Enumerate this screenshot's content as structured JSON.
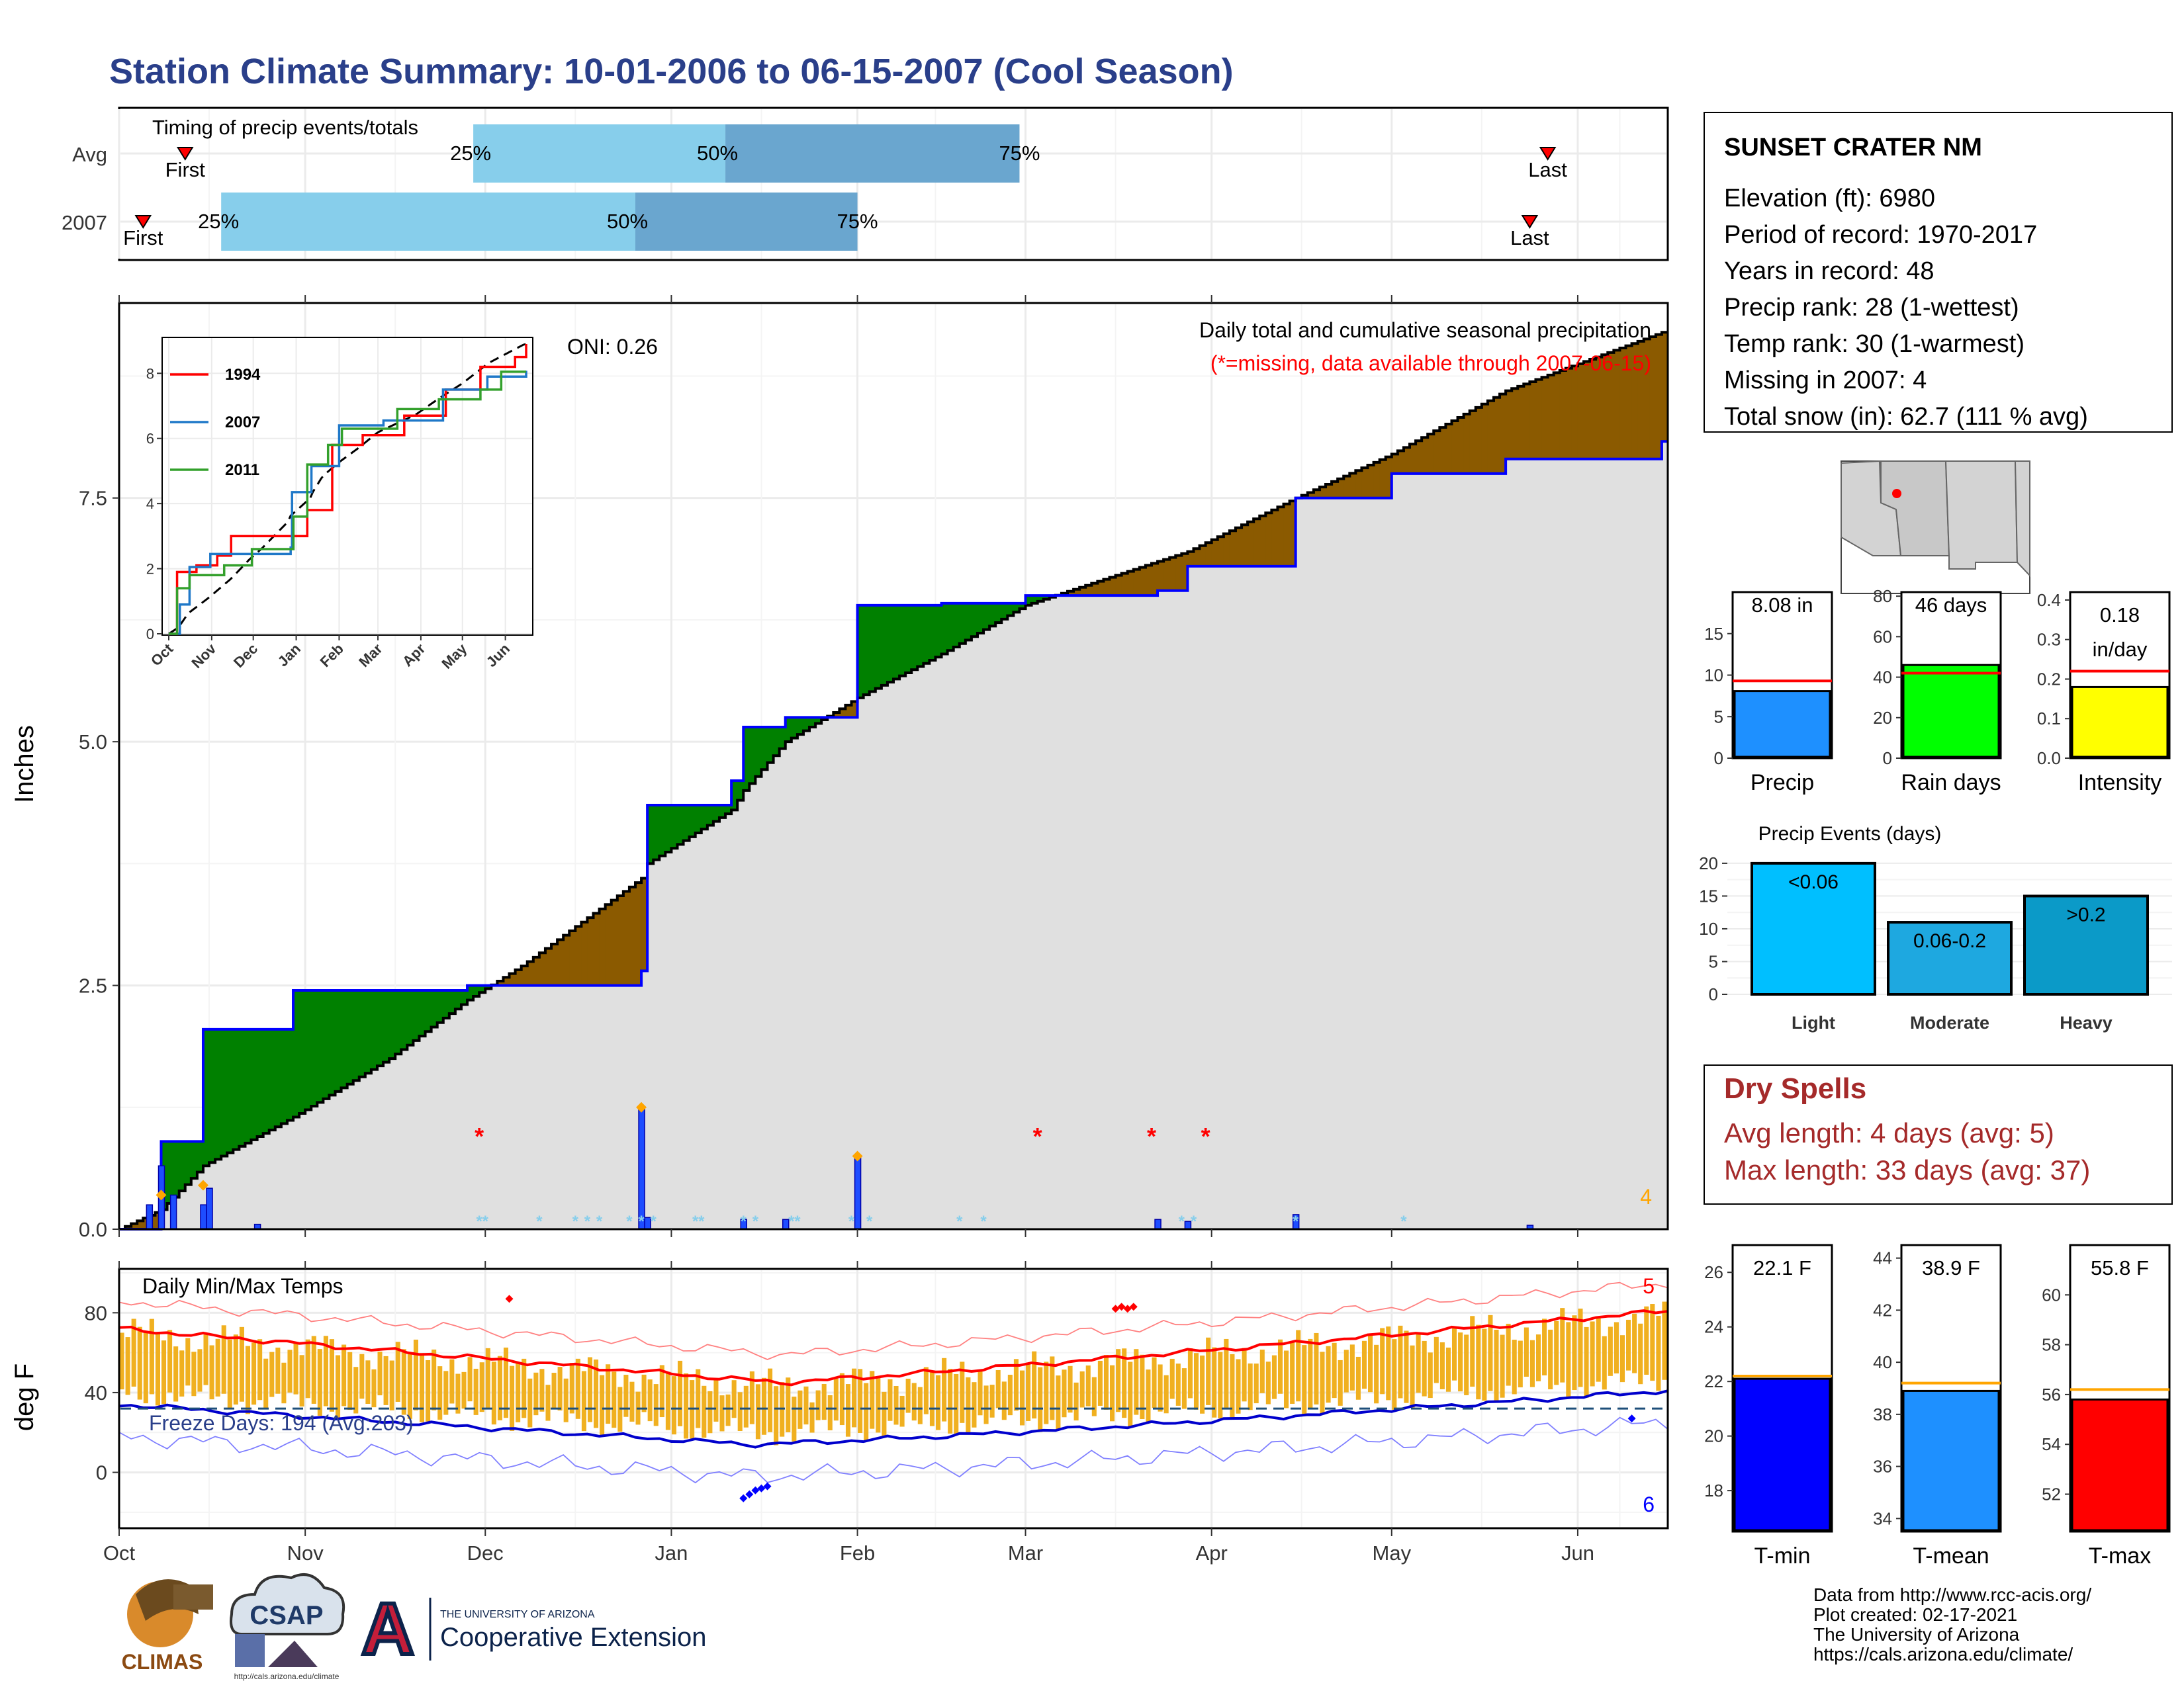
{
  "title": "Station Climate Summary: 10-01-2006 to 06-15-2007 (Cool Season)",
  "colors": {
    "title": "#2a3f8a",
    "light_blue": "#87ceeb",
    "mid_blue": "#6aa6cf",
    "green_surplus": "#008000",
    "brown_deficit": "#8b5a00",
    "gray_fill": "#e0e0e0",
    "blue_line": "#0000ff",
    "red": "#ff0000",
    "orange": "#ffa500",
    "gold_bars": "#f0b020",
    "dry_spells": "#a52a2a"
  },
  "timing": {
    "title": "Timing of precip events/totals",
    "rows": [
      {
        "label": "Avg",
        "first": "10-12",
        "p25": "11-29",
        "p50": "01-10",
        "p75": "02-28",
        "last": "05-27",
        "first_label": "First",
        "p25_label": "25%",
        "p50_label": "50%",
        "p75_label": "75%",
        "last_label": "Last"
      },
      {
        "label": "2007",
        "first": "10-05",
        "p25": "10-18",
        "p50": "12-26",
        "p75": "02-01",
        "last": "05-24",
        "first_label": "First",
        "p25_label": "25%",
        "p50_label": "50%",
        "p75_label": "75%",
        "last_label": "Last"
      }
    ]
  },
  "main_chart": {
    "ylabel": "Inches",
    "y_ticks": [
      "0.0",
      "2.5",
      "5.0",
      "7.5"
    ],
    "x_ticks": [
      "Oct",
      "Nov",
      "Dec",
      "Jan",
      "Feb",
      "Mar",
      "Apr",
      "May",
      "Jun"
    ],
    "annotation_title": "Daily total and cumulative seasonal precipitation",
    "annotation_missing": "(*=missing, data available through 2007-06-15)",
    "oni": "ONI: 0.26",
    "count_label": "4"
  },
  "inset": {
    "y_ticks": [
      "0",
      "2",
      "4",
      "6",
      "8"
    ],
    "x_ticks": [
      "Oct",
      "Nov",
      "Dec",
      "Jan",
      "Feb",
      "Mar",
      "Apr",
      "May",
      "Jun"
    ],
    "legend": [
      {
        "name": "1994",
        "color": "#ff0000"
      },
      {
        "name": "2007",
        "color": "#1f78c8"
      },
      {
        "name": "2011",
        "color": "#33a02c"
      }
    ]
  },
  "temp_chart": {
    "ylabel": "deg F",
    "title": "Daily Min/Max Temps",
    "y_ticks": [
      "0",
      "40",
      "80"
    ],
    "x_ticks": [
      "Oct",
      "Nov",
      "Dec",
      "Jan",
      "Feb",
      "Mar",
      "Apr",
      "May",
      "Jun"
    ],
    "freeze": "Freeze Days: 194 (Avg:203)",
    "high_count": "5",
    "low_count": "6"
  },
  "info": {
    "station": "SUNSET CRATER NM",
    "lines": [
      "Elevation (ft): 6980",
      "Period of record: 1970-2017",
      "Years in record: 48",
      "Precip rank: 28 (1-wettest)",
      "Temp rank: 30 (1-warmest)",
      "Missing in 2007: 4",
      "Total snow (in): 62.7 (111 % avg)"
    ]
  },
  "precip_boxes": [
    {
      "label": "Precip",
      "value_text": "8.08 in",
      "value": 8.08,
      "avg": 9.3,
      "ymax": 20,
      "ticks": [
        "0",
        "5",
        "10",
        "15"
      ],
      "color": "#1e90ff"
    },
    {
      "label": "Rain days",
      "value_text": "46 days",
      "value": 46,
      "avg": 42,
      "ymax": 82,
      "ticks": [
        "0",
        "20",
        "40",
        "60",
        "80"
      ],
      "color": "#00ff00"
    },
    {
      "label": "Intensity",
      "value_text": "0.18 in/day",
      "value_line1": "0.18",
      "value_line2": "in/day",
      "value": 0.18,
      "avg": 0.22,
      "ymax": 0.42,
      "ticks": [
        "0.0",
        "0.1",
        "0.2",
        "0.3",
        "0.4"
      ],
      "color": "#ffff00"
    }
  ],
  "events": {
    "title": "Precip Events (days)",
    "y_ticks": [
      "0",
      "5",
      "10",
      "15",
      "20"
    ],
    "bars": [
      {
        "category": "Light",
        "label": "<0.06",
        "value": 20,
        "color": "#00bfff"
      },
      {
        "category": "Moderate",
        "label": "0.06-0.2",
        "value": 11,
        "color": "#1ea8e0"
      },
      {
        "category": "Heavy",
        "label": ">0.2",
        "value": 15,
        "color": "#0b9ac8"
      }
    ]
  },
  "dry_spells": {
    "title": "Dry Spells",
    "avg": "Avg length: 4 days (avg: 5)",
    "max": "Max length: 33 days (avg: 37)"
  },
  "temp_boxes": [
    {
      "label": "T-min",
      "value_text": "22.1 F",
      "value": 22.1,
      "avg": 22.2,
      "ymin": 16.5,
      "ymax": 27,
      "ticks": [
        "18",
        "20",
        "22",
        "24",
        "26"
      ],
      "tick_values": [
        18,
        20,
        22,
        24,
        26
      ],
      "color": "#0000ff"
    },
    {
      "label": "T-mean",
      "value_text": "38.9 F",
      "value": 38.9,
      "avg": 39.2,
      "ymin": 33.5,
      "ymax": 44.5,
      "ticks": [
        "34",
        "36",
        "38",
        "40",
        "42",
        "44"
      ],
      "tick_values": [
        34,
        36,
        38,
        40,
        42,
        44
      ],
      "color": "#1e90ff"
    },
    {
      "label": "T-max",
      "value_text": "55.8 F",
      "value": 55.8,
      "avg": 56.2,
      "ymin": 50.5,
      "ymax": 62,
      "ticks": [
        "52",
        "54",
        "56",
        "58",
        "60"
      ],
      "tick_values": [
        52,
        54,
        56,
        58,
        60
      ],
      "color": "#ff0000"
    }
  ],
  "footer": {
    "lines": [
      "Data from http://www.rcc-acis.org/",
      "Plot created: 02-17-2021",
      "The University of Arizona",
      "https://cals.arizona.edu/climate/"
    ]
  },
  "logos": {
    "climas": "CLIMAS",
    "csap": "CSAP",
    "csap_url": "http://cals.arizona.edu/climate",
    "ua_letter": "A",
    "ua_line1": "THE UNIVERSITY OF ARIZONA",
    "ua_line2": "Cooperative Extension"
  },
  "chart_data": {
    "type": "area",
    "title": "Daily total and cumulative seasonal precipitation",
    "ylabel": "Inches",
    "ylim": [
      0,
      9.5
    ],
    "x": [
      "10-01",
      "10-08",
      "10-15",
      "10-30",
      "11-15",
      "11-28",
      "12-07",
      "12-27",
      "12-28",
      "01-11",
      "01-13",
      "01-20",
      "02-01",
      "02-15",
      "03-01",
      "03-23",
      "03-28",
      "04-15",
      "05-01",
      "05-20",
      "06-15"
    ],
    "series": [
      {
        "name": "2007",
        "values": [
          0,
          0.9,
          2.05,
          2.45,
          2.45,
          2.5,
          2.5,
          2.65,
          4.35,
          4.6,
          5.15,
          5.25,
          6.4,
          6.42,
          6.5,
          6.55,
          6.8,
          7.5,
          7.75,
          7.9,
          8.08
        ]
      },
      {
        "name": "Avg",
        "values": [
          0,
          0.2,
          0.65,
          1.15,
          1.75,
          2.35,
          2.7,
          3.6,
          3.75,
          4.3,
          4.5,
          5.0,
          5.45,
          5.9,
          6.4,
          6.85,
          6.95,
          7.5,
          7.95,
          8.6,
          9.2
        ]
      }
    ],
    "daily_precip": [
      {
        "date": "10-06",
        "value": 0.25
      },
      {
        "date": "10-08",
        "value": 0.65
      },
      {
        "date": "10-10",
        "value": 0.35
      },
      {
        "date": "10-15",
        "value": 0.25
      },
      {
        "date": "10-16",
        "value": 0.42
      },
      {
        "date": "10-24",
        "value": 0.05
      },
      {
        "date": "12-27",
        "value": 1.25
      },
      {
        "date": "12-28",
        "value": 0.12
      },
      {
        "date": "01-13",
        "value": 0.1
      },
      {
        "date": "01-20",
        "value": 0.1
      },
      {
        "date": "02-01",
        "value": 0.75
      },
      {
        "date": "03-23",
        "value": 0.1
      },
      {
        "date": "03-28",
        "value": 0.08
      },
      {
        "date": "04-15",
        "value": 0.15
      },
      {
        "date": "05-24",
        "value": 0.04
      }
    ],
    "temps": {
      "ylabel": "deg F",
      "normal_max_start": 72,
      "normal_max_end": 81,
      "normal_min_start": 34,
      "normal_min_end": 40,
      "freeze_line": 32
    }
  }
}
